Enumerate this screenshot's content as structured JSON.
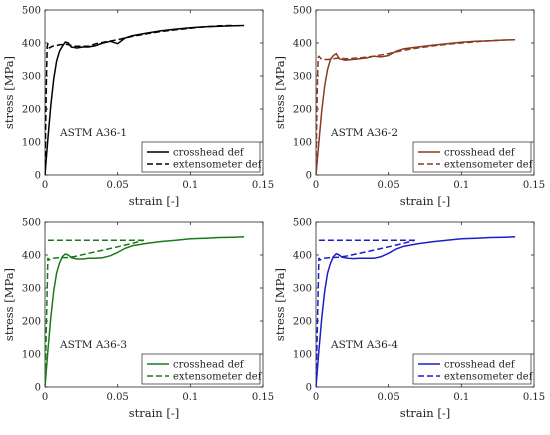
{
  "chart_data": [
    {
      "type": "line",
      "annotation": "ASTM A36-1",
      "color": "#000000",
      "xlabel": "strain [-]",
      "ylabel": "stress [MPa]",
      "xlim": [
        0,
        0.15
      ],
      "ylim": [
        0,
        500
      ],
      "xticks": [
        "0",
        "0.05",
        "0.1",
        "0.15"
      ],
      "yticks": [
        "0",
        "100",
        "200",
        "300",
        "400",
        "500"
      ],
      "legend_position": "bottom-right",
      "series": [
        {
          "name": "crosshead def",
          "style": "solid",
          "x": [
            0,
            0.002,
            0.004,
            0.006,
            0.008,
            0.01,
            0.012,
            0.014,
            0.016,
            0.018,
            0.022,
            0.026,
            0.03,
            0.035,
            0.04,
            0.045,
            0.05,
            0.055,
            0.06,
            0.07,
            0.08,
            0.09,
            0.1,
            0.11,
            0.12,
            0.13,
            0.137
          ],
          "y": [
            0,
            110,
            210,
            290,
            345,
            375,
            390,
            403,
            400,
            388,
            385,
            388,
            388,
            392,
            400,
            405,
            398,
            415,
            422,
            430,
            437,
            442,
            446,
            449,
            451,
            452,
            453
          ]
        },
        {
          "name": "extensometer def",
          "style": "dashed",
          "x": [
            0,
            0.0005,
            0.001,
            0.0015,
            0.002,
            0.003,
            0.005,
            0.008,
            0.01,
            0.015,
            0.02,
            0.03,
            0.035,
            0.04,
            0.05,
            0.06,
            0.07,
            0.08,
            0.09,
            0.1,
            0.11,
            0.12,
            0.13
          ],
          "y": [
            0,
            150,
            300,
            390,
            398,
            385,
            390,
            392,
            395,
            396,
            390,
            390,
            398,
            402,
            410,
            420,
            428,
            435,
            440,
            445,
            449,
            452,
            453
          ]
        }
      ]
    },
    {
      "type": "line",
      "annotation": "ASTM A36-2",
      "color": "#8a3a1e",
      "xlabel": "strain [-]",
      "ylabel": "stress [MPa]",
      "xlim": [
        0,
        0.15
      ],
      "ylim": [
        0,
        500
      ],
      "xticks": [
        "0",
        "0.05",
        "0.1",
        "0.15"
      ],
      "yticks": [
        "0",
        "100",
        "200",
        "300",
        "400",
        "500"
      ],
      "legend_position": "bottom-right",
      "series": [
        {
          "name": "crosshead def",
          "style": "solid",
          "x": [
            0,
            0.002,
            0.004,
            0.006,
            0.008,
            0.01,
            0.012,
            0.014,
            0.016,
            0.02,
            0.025,
            0.03,
            0.035,
            0.04,
            0.045,
            0.05,
            0.055,
            0.06,
            0.07,
            0.08,
            0.09,
            0.1,
            0.11,
            0.12,
            0.13,
            0.137
          ],
          "y": [
            0,
            100,
            195,
            270,
            320,
            350,
            362,
            368,
            352,
            348,
            350,
            352,
            355,
            360,
            358,
            362,
            375,
            382,
            388,
            393,
            398,
            402,
            405,
            407,
            409,
            410
          ]
        },
        {
          "name": "extensometer def",
          "style": "dashed",
          "x": [
            0,
            0.0005,
            0.001,
            0.0015,
            0.002,
            0.004,
            0.008,
            0.012,
            0.016,
            0.02,
            0.03,
            0.04,
            0.05,
            0.06,
            0.07,
            0.08,
            0.09,
            0.1,
            0.11,
            0.12,
            0.13
          ],
          "y": [
            0,
            150,
            290,
            355,
            360,
            350,
            350,
            352,
            355,
            352,
            355,
            360,
            368,
            378,
            385,
            391,
            396,
            400,
            404,
            407,
            409
          ]
        }
      ]
    },
    {
      "type": "line",
      "annotation": "ASTM A36-3",
      "color": "#1a7a1a",
      "xlabel": "strain [-]",
      "ylabel": "stress [MPa]",
      "xlim": [
        0,
        0.15
      ],
      "ylim": [
        0,
        500
      ],
      "xticks": [
        "0",
        "0.05",
        "0.1",
        "0.15"
      ],
      "yticks": [
        "0",
        "100",
        "200",
        "300",
        "400",
        "500"
      ],
      "legend_position": "bottom-right",
      "series": [
        {
          "name": "crosshead def",
          "style": "solid",
          "x": [
            0,
            0.002,
            0.004,
            0.006,
            0.008,
            0.01,
            0.012,
            0.014,
            0.016,
            0.018,
            0.022,
            0.026,
            0.03,
            0.035,
            0.04,
            0.045,
            0.05,
            0.055,
            0.06,
            0.07,
            0.08,
            0.09,
            0.1,
            0.11,
            0.12,
            0.13,
            0.137
          ],
          "y": [
            0,
            110,
            210,
            290,
            345,
            375,
            395,
            403,
            400,
            392,
            388,
            388,
            390,
            390,
            392,
            398,
            408,
            420,
            428,
            435,
            441,
            445,
            449,
            451,
            453,
            454,
            455
          ]
        },
        {
          "name": "extensometer def",
          "style": "dashed",
          "x": [
            0,
            0.001,
            0.002,
            0.003,
            0.005,
            0.01,
            0.015,
            0.02,
            0.03,
            0.04,
            0.05,
            0.06,
            0.068
          ],
          "y": [
            0,
            200,
            390,
            385,
            390,
            392,
            392,
            395,
            405,
            415,
            425,
            435,
            445
          ]
        },
        {
          "name": "",
          "style": "dashed",
          "x": [
            0.002,
            0.068
          ],
          "y": [
            445,
            445
          ]
        }
      ]
    },
    {
      "type": "line",
      "annotation": "ASTM A36-4",
      "color": "#1e1ec8",
      "xlabel": "strain [-]",
      "ylabel": "stress [MPa]",
      "xlim": [
        0,
        0.15
      ],
      "ylim": [
        0,
        500
      ],
      "xticks": [
        "0",
        "0.05",
        "0.1",
        "0.15"
      ],
      "yticks": [
        "0",
        "100",
        "200",
        "300",
        "400",
        "500"
      ],
      "legend_position": "bottom-right",
      "series": [
        {
          "name": "crosshead def",
          "style": "solid",
          "x": [
            0,
            0.002,
            0.004,
            0.006,
            0.008,
            0.01,
            0.012,
            0.014,
            0.016,
            0.018,
            0.022,
            0.026,
            0.03,
            0.035,
            0.04,
            0.045,
            0.05,
            0.055,
            0.06,
            0.07,
            0.08,
            0.09,
            0.1,
            0.11,
            0.12,
            0.13,
            0.137
          ],
          "y": [
            0,
            110,
            210,
            290,
            345,
            375,
            395,
            404,
            400,
            393,
            390,
            389,
            390,
            390,
            390,
            395,
            405,
            418,
            426,
            434,
            440,
            445,
            449,
            451,
            453,
            454,
            455
          ]
        },
        {
          "name": "extensometer def",
          "style": "dashed",
          "x": [
            0,
            0.001,
            0.002,
            0.003,
            0.005,
            0.01,
            0.015,
            0.02,
            0.03,
            0.04,
            0.05,
            0.06,
            0.068
          ],
          "y": [
            0,
            200,
            390,
            385,
            390,
            392,
            393,
            396,
            405,
            415,
            425,
            435,
            445
          ]
        },
        {
          "name": "",
          "style": "dashed",
          "x": [
            0.002,
            0.068
          ],
          "y": [
            445,
            445
          ]
        }
      ]
    }
  ]
}
